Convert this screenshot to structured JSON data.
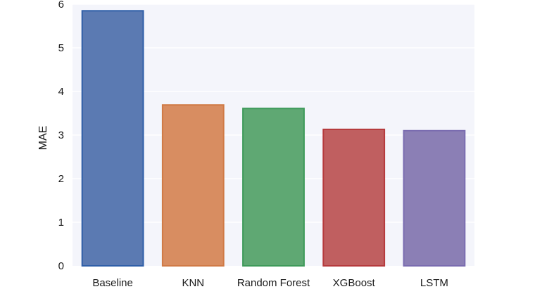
{
  "chart_data": {
    "type": "bar",
    "title": "",
    "xlabel": "",
    "ylabel": "MAE",
    "ylim": [
      0,
      6
    ],
    "yticks": [
      0,
      1,
      2,
      3,
      4,
      5,
      6
    ],
    "grid": true,
    "categories": [
      "Baseline",
      "KNN",
      "Random Forest",
      "XGBoost",
      "LSTM"
    ],
    "values": [
      5.85,
      3.69,
      3.61,
      3.13,
      3.1
    ],
    "colors": {
      "bars": [
        "#5b7ab2",
        "#d88d61",
        "#5fa873",
        "#c05f60",
        "#8b7fb5"
      ],
      "edges": [
        "#2f5fa8",
        "#d07a46",
        "#3e9a5a",
        "#b63a3d",
        "#7a6cb0"
      ],
      "plot_background": "#f4f5fb",
      "grid": "#ffffff"
    }
  }
}
